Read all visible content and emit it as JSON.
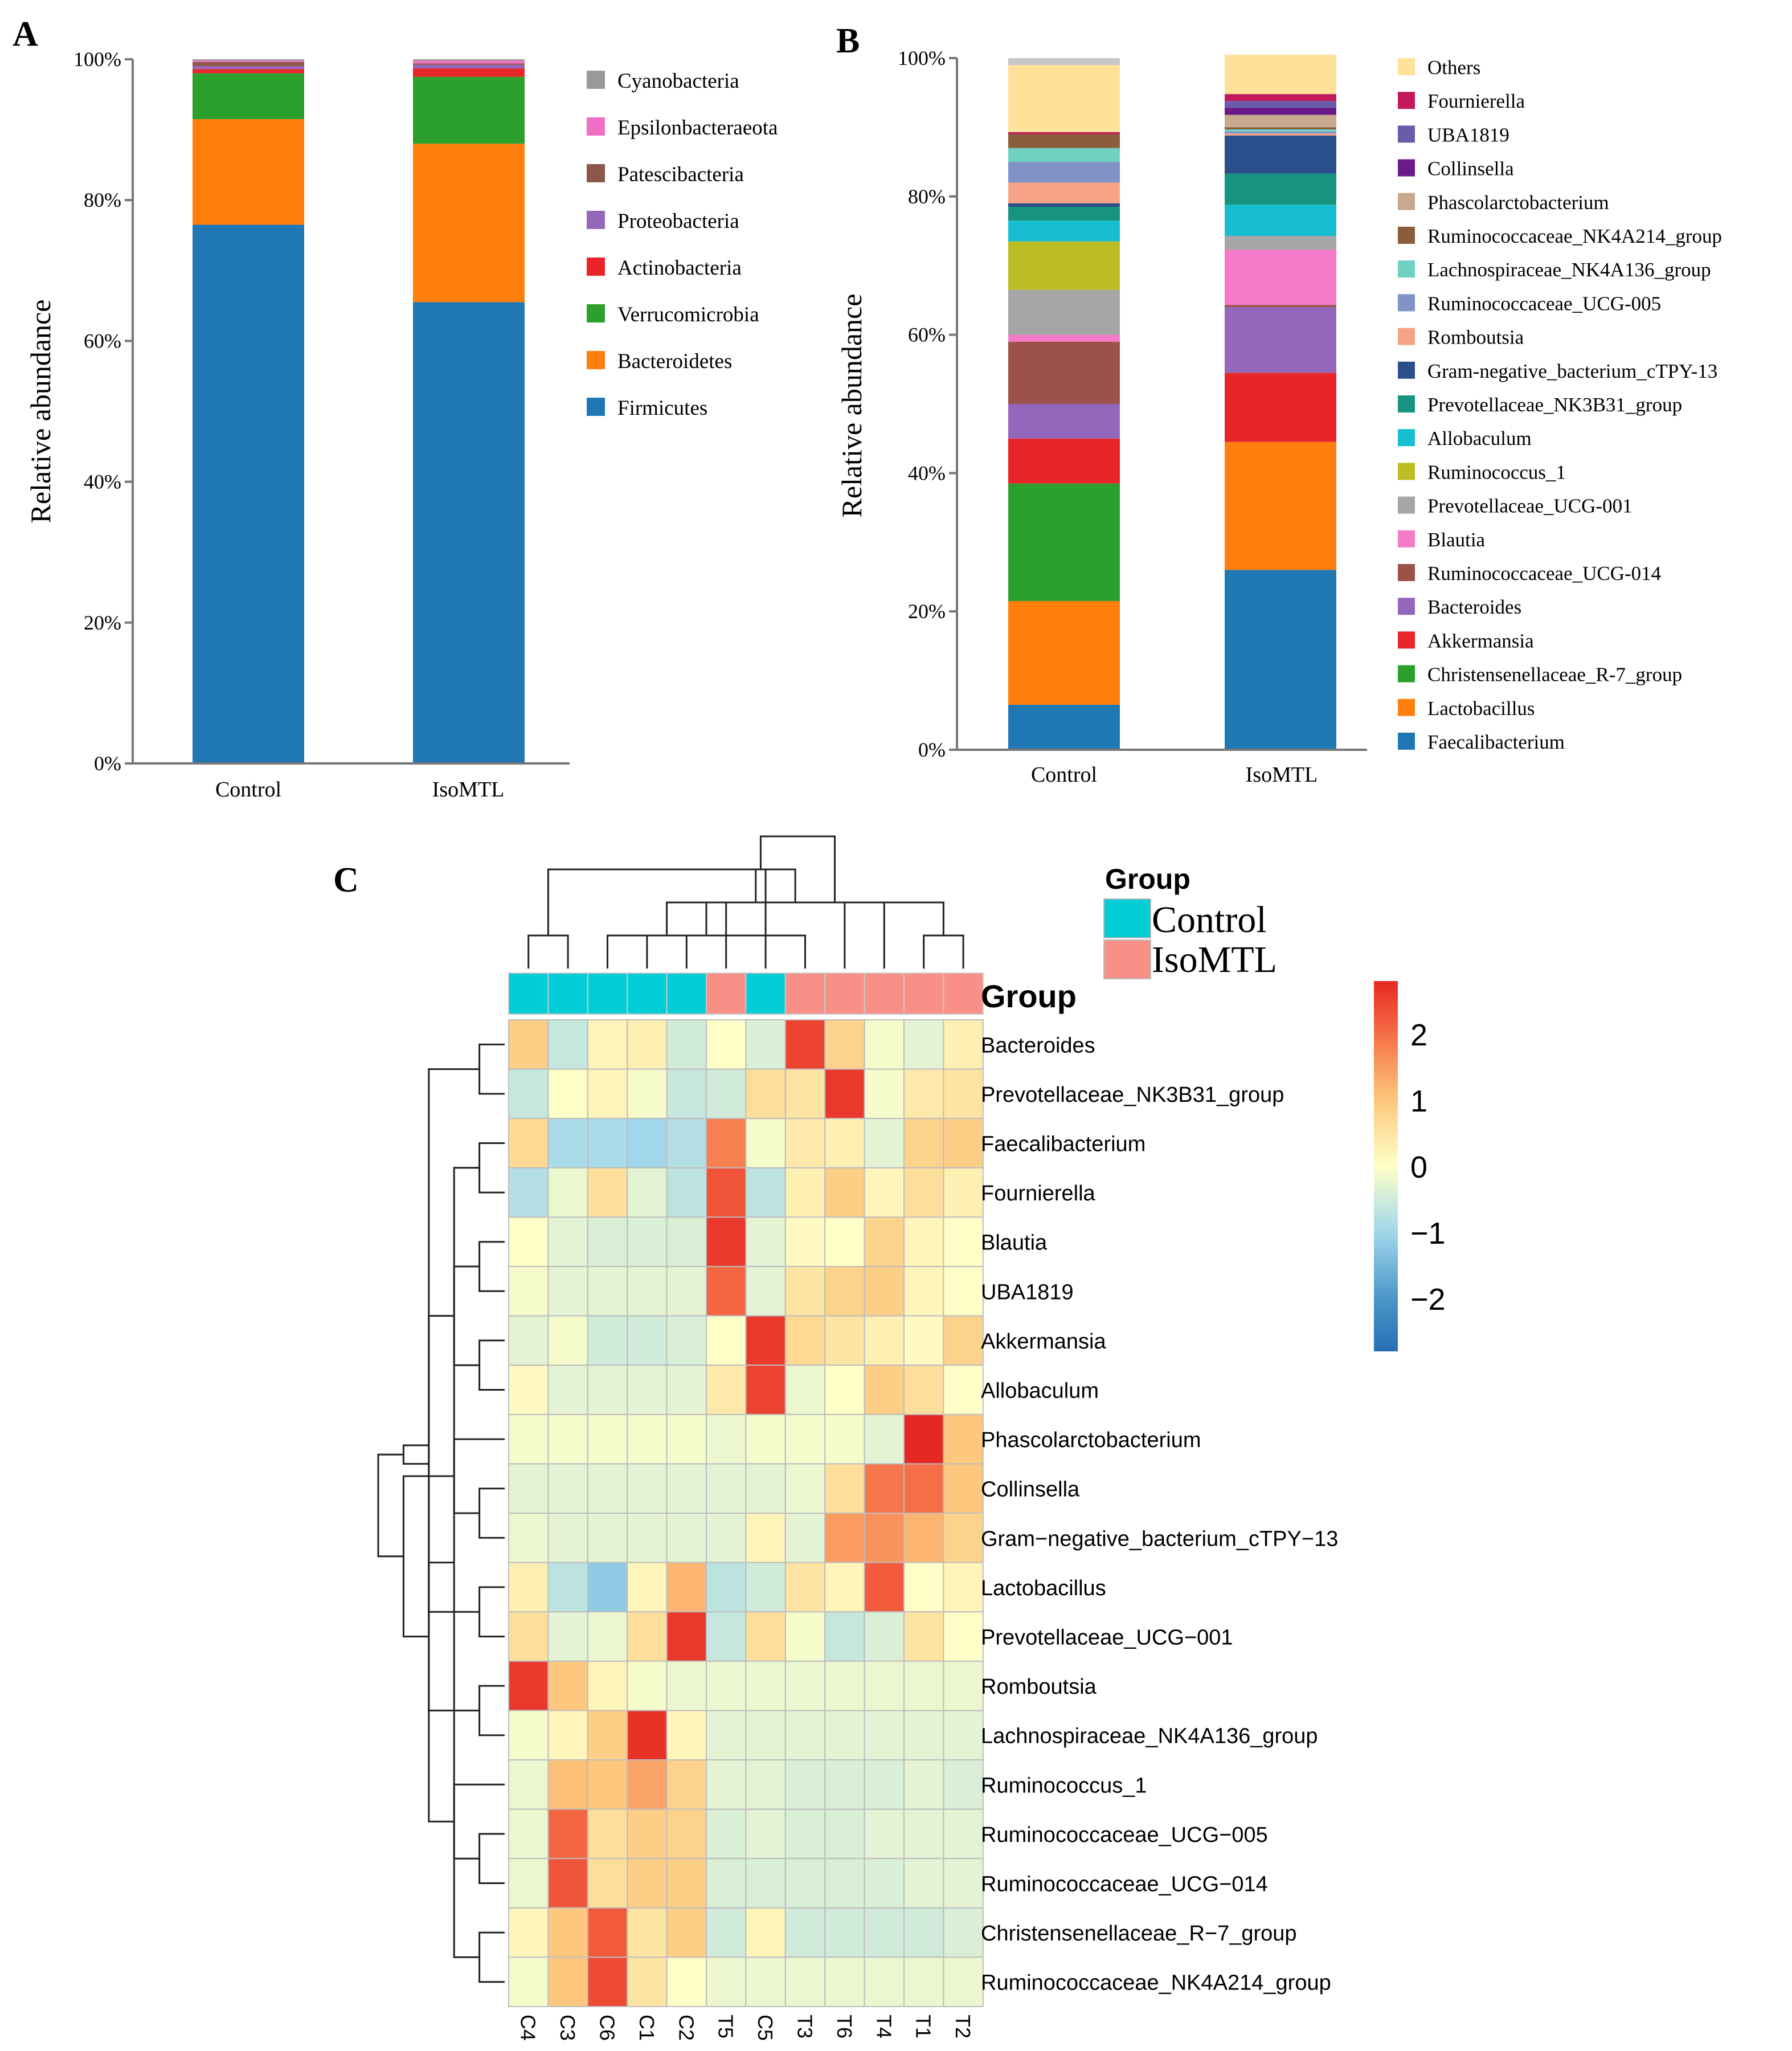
{
  "panels": {
    "a": "A",
    "b": "B",
    "c": "C"
  },
  "chart_data": [
    {
      "panel": "A",
      "type": "bar",
      "stacked": true,
      "ylabel": "Relative abundance",
      "ylim": [
        0,
        100
      ],
      "yticks": [
        "0%",
        "20%",
        "40%",
        "60%",
        "80%",
        "100%"
      ],
      "categories": [
        "Control",
        "IsoMTL"
      ],
      "series": [
        {
          "name": "Firmicutes",
          "color": "#1f77b4",
          "values": [
            76.5,
            65.5
          ]
        },
        {
          "name": "Bacteroidetes",
          "color": "#ff7f0e",
          "values": [
            15.0,
            22.5
          ]
        },
        {
          "name": "Verrucomicrobia",
          "color": "#2ca02c",
          "values": [
            6.5,
            9.5
          ]
        },
        {
          "name": "Actinobacteria",
          "color": "#e8262a",
          "values": [
            0.6,
            1.2
          ]
        },
        {
          "name": "Proteobacteria",
          "color": "#9467bd",
          "values": [
            0.4,
            0.5
          ]
        },
        {
          "name": "Patescibacteria",
          "color": "#8c564b",
          "values": [
            0.6,
            0.2
          ]
        },
        {
          "name": "Epsilonbacteraeota",
          "color": "#f06fc4",
          "values": [
            0.2,
            0.4
          ]
        },
        {
          "name": "Cyanobacteria",
          "color": "#9a9a9a",
          "values": [
            0.2,
            0.2
          ]
        }
      ],
      "legend_order": [
        "Cyanobacteria",
        "Epsilonbacteraeota",
        "Patescibacteria",
        "Proteobacteria",
        "Actinobacteria",
        "Verrucomicrobia",
        "Bacteroidetes",
        "Firmicutes"
      ]
    },
    {
      "panel": "B",
      "type": "bar",
      "stacked": true,
      "ylabel": "Relative abundance",
      "ylim": [
        0,
        100
      ],
      "yticks": [
        "0%",
        "20%",
        "40%",
        "60%",
        "80%",
        "100%"
      ],
      "categories": [
        "Control",
        "IsoMTL"
      ],
      "series": [
        {
          "name": "Faecalibacterium",
          "color": "#1f77b4",
          "values": [
            6.5,
            26.0
          ]
        },
        {
          "name": "Lactobacillus",
          "color": "#ff7f0e",
          "values": [
            15.0,
            18.5
          ]
        },
        {
          "name": "Christensenellaceae_R-7_group",
          "color": "#2ca02c",
          "values": [
            17.0,
            0.0
          ]
        },
        {
          "name": "Akkermansia",
          "color": "#e8262a",
          "values": [
            6.5,
            10.0
          ]
        },
        {
          "name": "Bacteroides",
          "color": "#9467bd",
          "values": [
            5.0,
            9.5
          ]
        },
        {
          "name": "Ruminococcaceae_UCG-014",
          "color": "#9c5249",
          "values": [
            9.0,
            0.3
          ]
        },
        {
          "name": "Blautia",
          "color": "#f57ac9",
          "values": [
            1.0,
            8.0
          ]
        },
        {
          "name": "Prevotellaceae_UCG-001",
          "color": "#a6a6a6",
          "values": [
            6.5,
            2.0
          ]
        },
        {
          "name": "Ruminococcus_1",
          "color": "#bcbd22",
          "values": [
            7.0,
            0.0
          ]
        },
        {
          "name": "Allobaculum",
          "color": "#17becf",
          "values": [
            3.0,
            4.5
          ]
        },
        {
          "name": "Prevotellaceae_NK3B31_group",
          "color": "#17947f",
          "values": [
            2.0,
            4.5
          ]
        },
        {
          "name": "Gram-negative_bacterium_cTPY-13",
          "color": "#2b4f8a",
          "values": [
            0.5,
            5.5
          ]
        },
        {
          "name": "Romboutsia",
          "color": "#f7a387",
          "values": [
            3.0,
            0.3
          ]
        },
        {
          "name": "Ruminococcaceae_UCG-005",
          "color": "#7f93c6",
          "values": [
            3.0,
            0.3
          ]
        },
        {
          "name": "Lachnospiraceae_NK4A136_group",
          "color": "#6fd1c1",
          "values": [
            2.0,
            0.3
          ]
        },
        {
          "name": "Ruminococcaceae_NK4A214_group",
          "color": "#8a5e3c",
          "values": [
            2.0,
            0.3
          ]
        },
        {
          "name": "Phascolarctobacterium",
          "color": "#c9a98e",
          "values": [
            0.0,
            1.8
          ]
        },
        {
          "name": "Collinsella",
          "color": "#6a1b8a",
          "values": [
            0.0,
            1.0
          ]
        },
        {
          "name": "UBA1819",
          "color": "#6a5aa8",
          "values": [
            0.0,
            1.0
          ]
        },
        {
          "name": "Fournierella",
          "color": "#c2185b",
          "values": [
            0.3,
            1.0
          ]
        },
        {
          "name": "Others",
          "color": "#ffe199",
          "values": [
            9.7,
            5.7
          ]
        }
      ],
      "legend_order": [
        "Others",
        "Fournierella",
        "UBA1819",
        "Collinsella",
        "Phascolarctobacterium",
        "Ruminococcaceae_NK4A214_group",
        "Lachnospiraceae_NK4A136_group",
        "Ruminococcaceae_UCG-005",
        "Romboutsia",
        "Gram-negative_bacterium_cTPY-13",
        "Prevotellaceae_NK3B31_group",
        "Allobaculum",
        "Ruminococcus_1",
        "Prevotellaceae_UCG-001",
        "Blautia",
        "Ruminococcaceae_UCG-014",
        "Bacteroides",
        "Akkermansia",
        "Christensenellaceae_R-7_group",
        "Lactobacillus",
        "Faecalibacterium"
      ]
    },
    {
      "panel": "C",
      "type": "heatmap",
      "columns": [
        "C4",
        "C3",
        "C6",
        "C1",
        "C2",
        "T5",
        "C5",
        "T3",
        "T6",
        "T4",
        "T1",
        "T2"
      ],
      "column_groups": [
        "Control",
        "Control",
        "Control",
        "Control",
        "Control",
        "IsoMTL",
        "Control",
        "IsoMTL",
        "IsoMTL",
        "IsoMTL",
        "IsoMTL",
        "IsoMTL"
      ],
      "group_row_label": "Group",
      "group_legend": {
        "title": "Group",
        "items": [
          {
            "name": "Control",
            "color": "#00cdd6"
          },
          {
            "name": "IsoMTL",
            "color": "#f99088"
          }
        ]
      },
      "colorbar": {
        "min": -2.8,
        "max": 2.8,
        "ticks": [
          2,
          1,
          0,
          -1,
          -2
        ],
        "tick_labels": [
          "2",
          "1",
          "0",
          "−1",
          "−2"
        ]
      },
      "rows": [
        "Bacteroides",
        "Prevotellaceae_NK3B31_group",
        "Faecalibacterium",
        "Fournierella",
        "Blautia",
        "UBA1819",
        "Akkermansia",
        "Allobaculum",
        "Phascolarctobacterium",
        "Collinsella",
        "Gram−negative_bacterium_cTPY−13",
        "Lactobacillus",
        "Prevotellaceae_UCG−001",
        "Romboutsia",
        "Lachnospiraceae_NK4A136_group",
        "Ruminococcus_1",
        "Ruminococcaceae_UCG−005",
        "Ruminococcaceae_UCG−014",
        "Christensenellaceae_R−7_group",
        "Ruminococcaceae_NK4A214_group"
      ],
      "values": [
        [
          0.9,
          -0.6,
          0.2,
          0.3,
          -0.5,
          0.0,
          -0.4,
          2.5,
          0.8,
          -0.1,
          -0.3,
          0.3
        ],
        [
          -0.6,
          0.0,
          0.2,
          -0.1,
          -0.6,
          -0.5,
          0.6,
          0.5,
          2.6,
          -0.1,
          0.4,
          0.5
        ],
        [
          0.7,
          -0.9,
          -0.9,
          -1.0,
          -0.8,
          1.8,
          -0.1,
          0.4,
          0.3,
          -0.3,
          0.8,
          0.9
        ],
        [
          -0.8,
          -0.2,
          0.6,
          -0.3,
          -0.7,
          2.3,
          -0.7,
          0.3,
          0.9,
          0.2,
          0.6,
          0.3
        ],
        [
          0.0,
          -0.3,
          -0.4,
          -0.4,
          -0.4,
          2.6,
          -0.3,
          0.1,
          0.0,
          0.8,
          0.2,
          0.0
        ],
        [
          -0.1,
          -0.3,
          -0.3,
          -0.3,
          -0.3,
          2.1,
          -0.3,
          0.5,
          0.8,
          0.9,
          0.2,
          0.0
        ],
        [
          -0.3,
          -0.1,
          -0.5,
          -0.5,
          -0.4,
          0.0,
          2.6,
          0.7,
          0.5,
          0.3,
          0.1,
          0.8
        ],
        [
          0.1,
          -0.3,
          -0.3,
          -0.3,
          -0.3,
          0.4,
          2.5,
          -0.2,
          0.0,
          0.9,
          0.6,
          0.0
        ],
        [
          -0.1,
          -0.1,
          -0.1,
          -0.1,
          -0.1,
          -0.2,
          -0.1,
          -0.1,
          -0.1,
          -0.3,
          2.8,
          1.0
        ],
        [
          -0.3,
          -0.3,
          -0.3,
          -0.3,
          -0.3,
          -0.3,
          -0.3,
          -0.2,
          0.6,
          1.9,
          2.0,
          1.0
        ],
        [
          -0.2,
          -0.3,
          -0.3,
          -0.3,
          -0.3,
          -0.3,
          0.2,
          -0.3,
          1.5,
          1.6,
          1.2,
          0.8
        ],
        [
          0.3,
          -0.7,
          -1.2,
          0.2,
          1.2,
          -0.7,
          -0.5,
          0.5,
          0.2,
          2.2,
          0.0,
          0.2
        ],
        [
          0.6,
          -0.3,
          -0.2,
          0.6,
          2.6,
          -0.6,
          0.6,
          -0.1,
          -0.6,
          -0.4,
          0.5,
          0.0
        ],
        [
          2.6,
          1.0,
          0.2,
          -0.1,
          -0.2,
          -0.2,
          -0.2,
          -0.2,
          -0.2,
          -0.2,
          -0.2,
          -0.2
        ],
        [
          -0.1,
          0.2,
          0.9,
          2.7,
          0.2,
          -0.3,
          -0.3,
          -0.3,
          -0.3,
          -0.3,
          -0.3,
          -0.3
        ],
        [
          -0.2,
          1.1,
          1.0,
          1.4,
          0.8,
          -0.3,
          -0.3,
          -0.4,
          -0.4,
          -0.4,
          -0.3,
          -0.4
        ],
        [
          -0.2,
          2.1,
          0.6,
          0.9,
          0.8,
          -0.4,
          -0.3,
          -0.4,
          -0.4,
          -0.3,
          -0.3,
          -0.3
        ],
        [
          -0.2,
          2.3,
          0.6,
          0.9,
          0.9,
          -0.4,
          -0.4,
          -0.4,
          -0.4,
          -0.4,
          -0.3,
          -0.3
        ],
        [
          0.2,
          1.0,
          2.2,
          0.5,
          0.9,
          -0.5,
          0.2,
          -0.5,
          -0.5,
          -0.5,
          -0.5,
          -0.4
        ],
        [
          -0.1,
          1.0,
          2.4,
          0.5,
          0.0,
          -0.2,
          -0.2,
          -0.2,
          -0.2,
          -0.2,
          -0.2,
          -0.2
        ]
      ]
    }
  ],
  "dendrograms": {
    "columns": [
      [
        3,
        4
      ],
      [
        0,
        1
      ],
      [
        2,
        7
      ],
      [
        8,
        12
      ],
      [
        10,
        11
      ],
      [
        9,
        14
      ],
      [
        6,
        15
      ],
      [
        5,
        16
      ],
      [
        13,
        17
      ],
      [
        18,
        19
      ]
    ],
    "rows": [
      [
        4,
        5
      ],
      [
        9,
        10
      ],
      [
        2,
        3
      ],
      [
        6,
        7
      ],
      [
        8,
        21
      ],
      [
        18,
        19
      ],
      [
        16,
        17
      ],
      [
        22,
        25
      ],
      [
        15,
        26
      ],
      [
        20,
        23
      ],
      [
        0,
        1
      ],
      [
        11,
        12
      ],
      [
        13,
        14
      ],
      [
        29,
        31
      ],
      [
        28,
        30
      ],
      [
        33,
        34
      ],
      [
        32,
        27
      ],
      [
        24,
        36
      ],
      [
        35,
        37
      ]
    ]
  }
}
